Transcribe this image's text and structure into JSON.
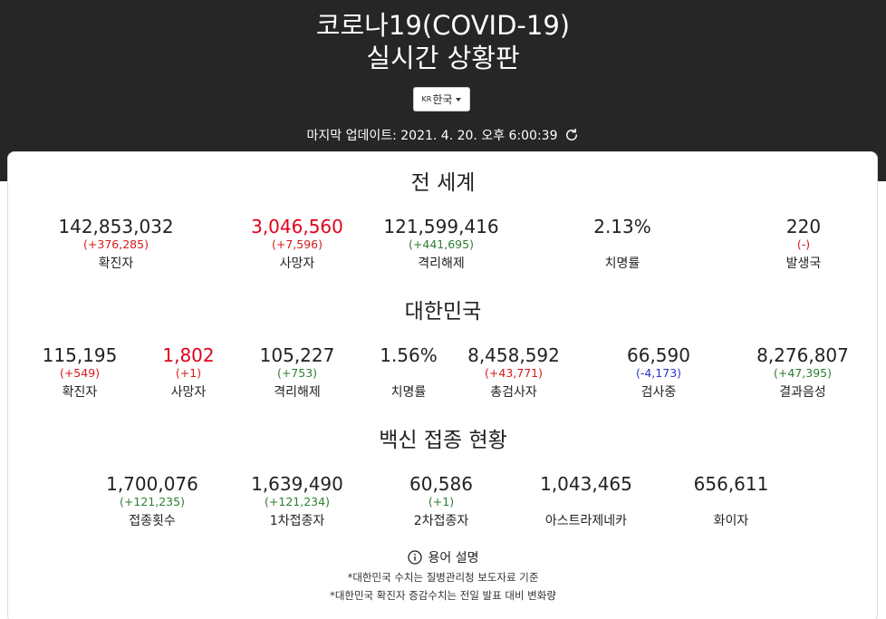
{
  "header": {
    "title_line1": "코로나19(COVID-19)",
    "title_line2": "실시간 상황판",
    "region_flag": "KR",
    "region_label": "한국",
    "update_label": "마지막 업데이트: 2021. 4. 20. 오후 6:00:39"
  },
  "world": {
    "title": "전 세계",
    "stats": [
      {
        "value": "142,853,032",
        "delta": "(+376,285)",
        "label": "확진자"
      },
      {
        "value": "3,046,560",
        "delta": "(+7,596)",
        "label": "사망자"
      },
      {
        "value": "121,599,416",
        "delta": "(+441,695)",
        "label": "격리해제"
      },
      {
        "value": "2.13%",
        "delta": "",
        "label": "치명률"
      },
      {
        "value": "220",
        "delta": "(-)",
        "label": "발생국"
      }
    ]
  },
  "korea": {
    "title": "대한민국",
    "stats": [
      {
        "value": "115,195",
        "delta": "(+549)",
        "label": "확진자"
      },
      {
        "value": "1,802",
        "delta": "(+1)",
        "label": "사망자"
      },
      {
        "value": "105,227",
        "delta": "(+753)",
        "label": "격리해제"
      },
      {
        "value": "1.56%",
        "delta": "",
        "label": "치명률"
      },
      {
        "value": "8,458,592",
        "delta": "(+43,771)",
        "label": "총검사자"
      },
      {
        "value": "66,590",
        "delta": "(-4,173)",
        "label": "검사중"
      },
      {
        "value": "8,276,807",
        "delta": "(+47,395)",
        "label": "결과음성"
      }
    ]
  },
  "vaccine": {
    "title": "백신 접종 현황",
    "stats": [
      {
        "value": "1,700,076",
        "delta": "(+121,235)",
        "label": "접종횟수"
      },
      {
        "value": "1,639,490",
        "delta": "(+121,234)",
        "label": "1차접종자"
      },
      {
        "value": "60,586",
        "delta": "(+1)",
        "label": "2차접종자"
      },
      {
        "value": "1,043,465",
        "delta": "",
        "label": "아스트라제네카"
      },
      {
        "value": "656,611",
        "delta": "",
        "label": "화이자"
      }
    ]
  },
  "footer": {
    "terms_label": "용어 설명",
    "note1": "*대한민국 수치는 질병관리청 보도자료 기준",
    "note2": "*대한민국 확진자 증감수치는 전일 발표 대비 변화량"
  },
  "colors": {
    "header_bg": "#262626",
    "death_red": "#e0001b",
    "increase_red": "#d61a1a",
    "recovered_green": "#2e7d32",
    "decrease_blue": "#2a35c8"
  },
  "icons": [
    "refresh-icon",
    "info-icon",
    "caret-down-icon"
  ]
}
